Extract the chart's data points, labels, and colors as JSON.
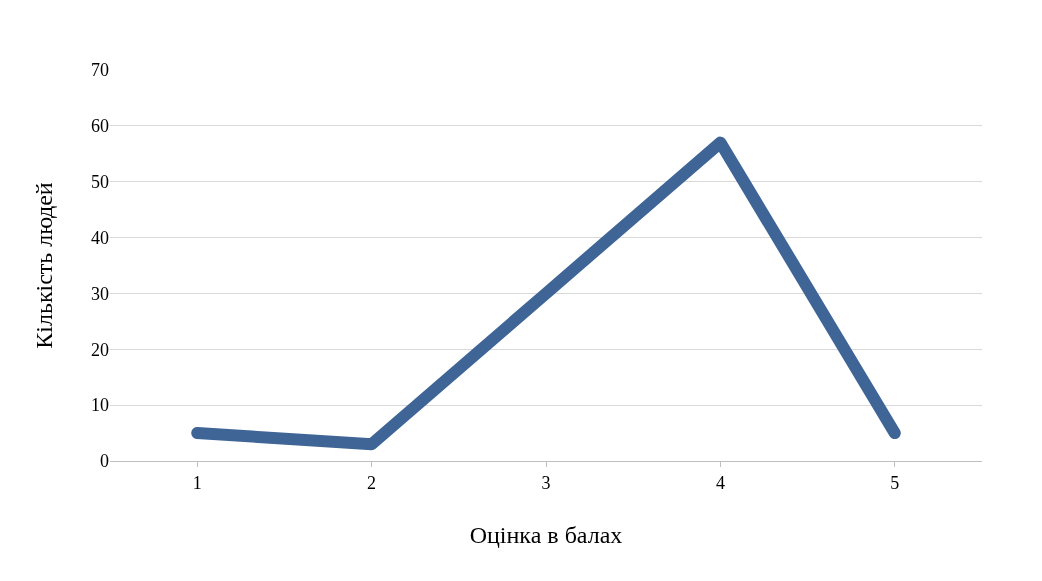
{
  "chart_data": {
    "type": "line",
    "xlabel": "Оцінка в балах",
    "ylabel": "Кількість людей",
    "categories": [
      "1",
      "2",
      "3",
      "4",
      "5"
    ],
    "series": [
      {
        "color": "#3f6597",
        "values": [
          5,
          3,
          30,
          57,
          5
        ]
      }
    ],
    "ylim": [
      0,
      70
    ],
    "yticks": [
      0,
      10,
      20,
      30,
      40,
      50,
      60,
      70
    ],
    "grid": "y",
    "line_style": "solid"
  }
}
